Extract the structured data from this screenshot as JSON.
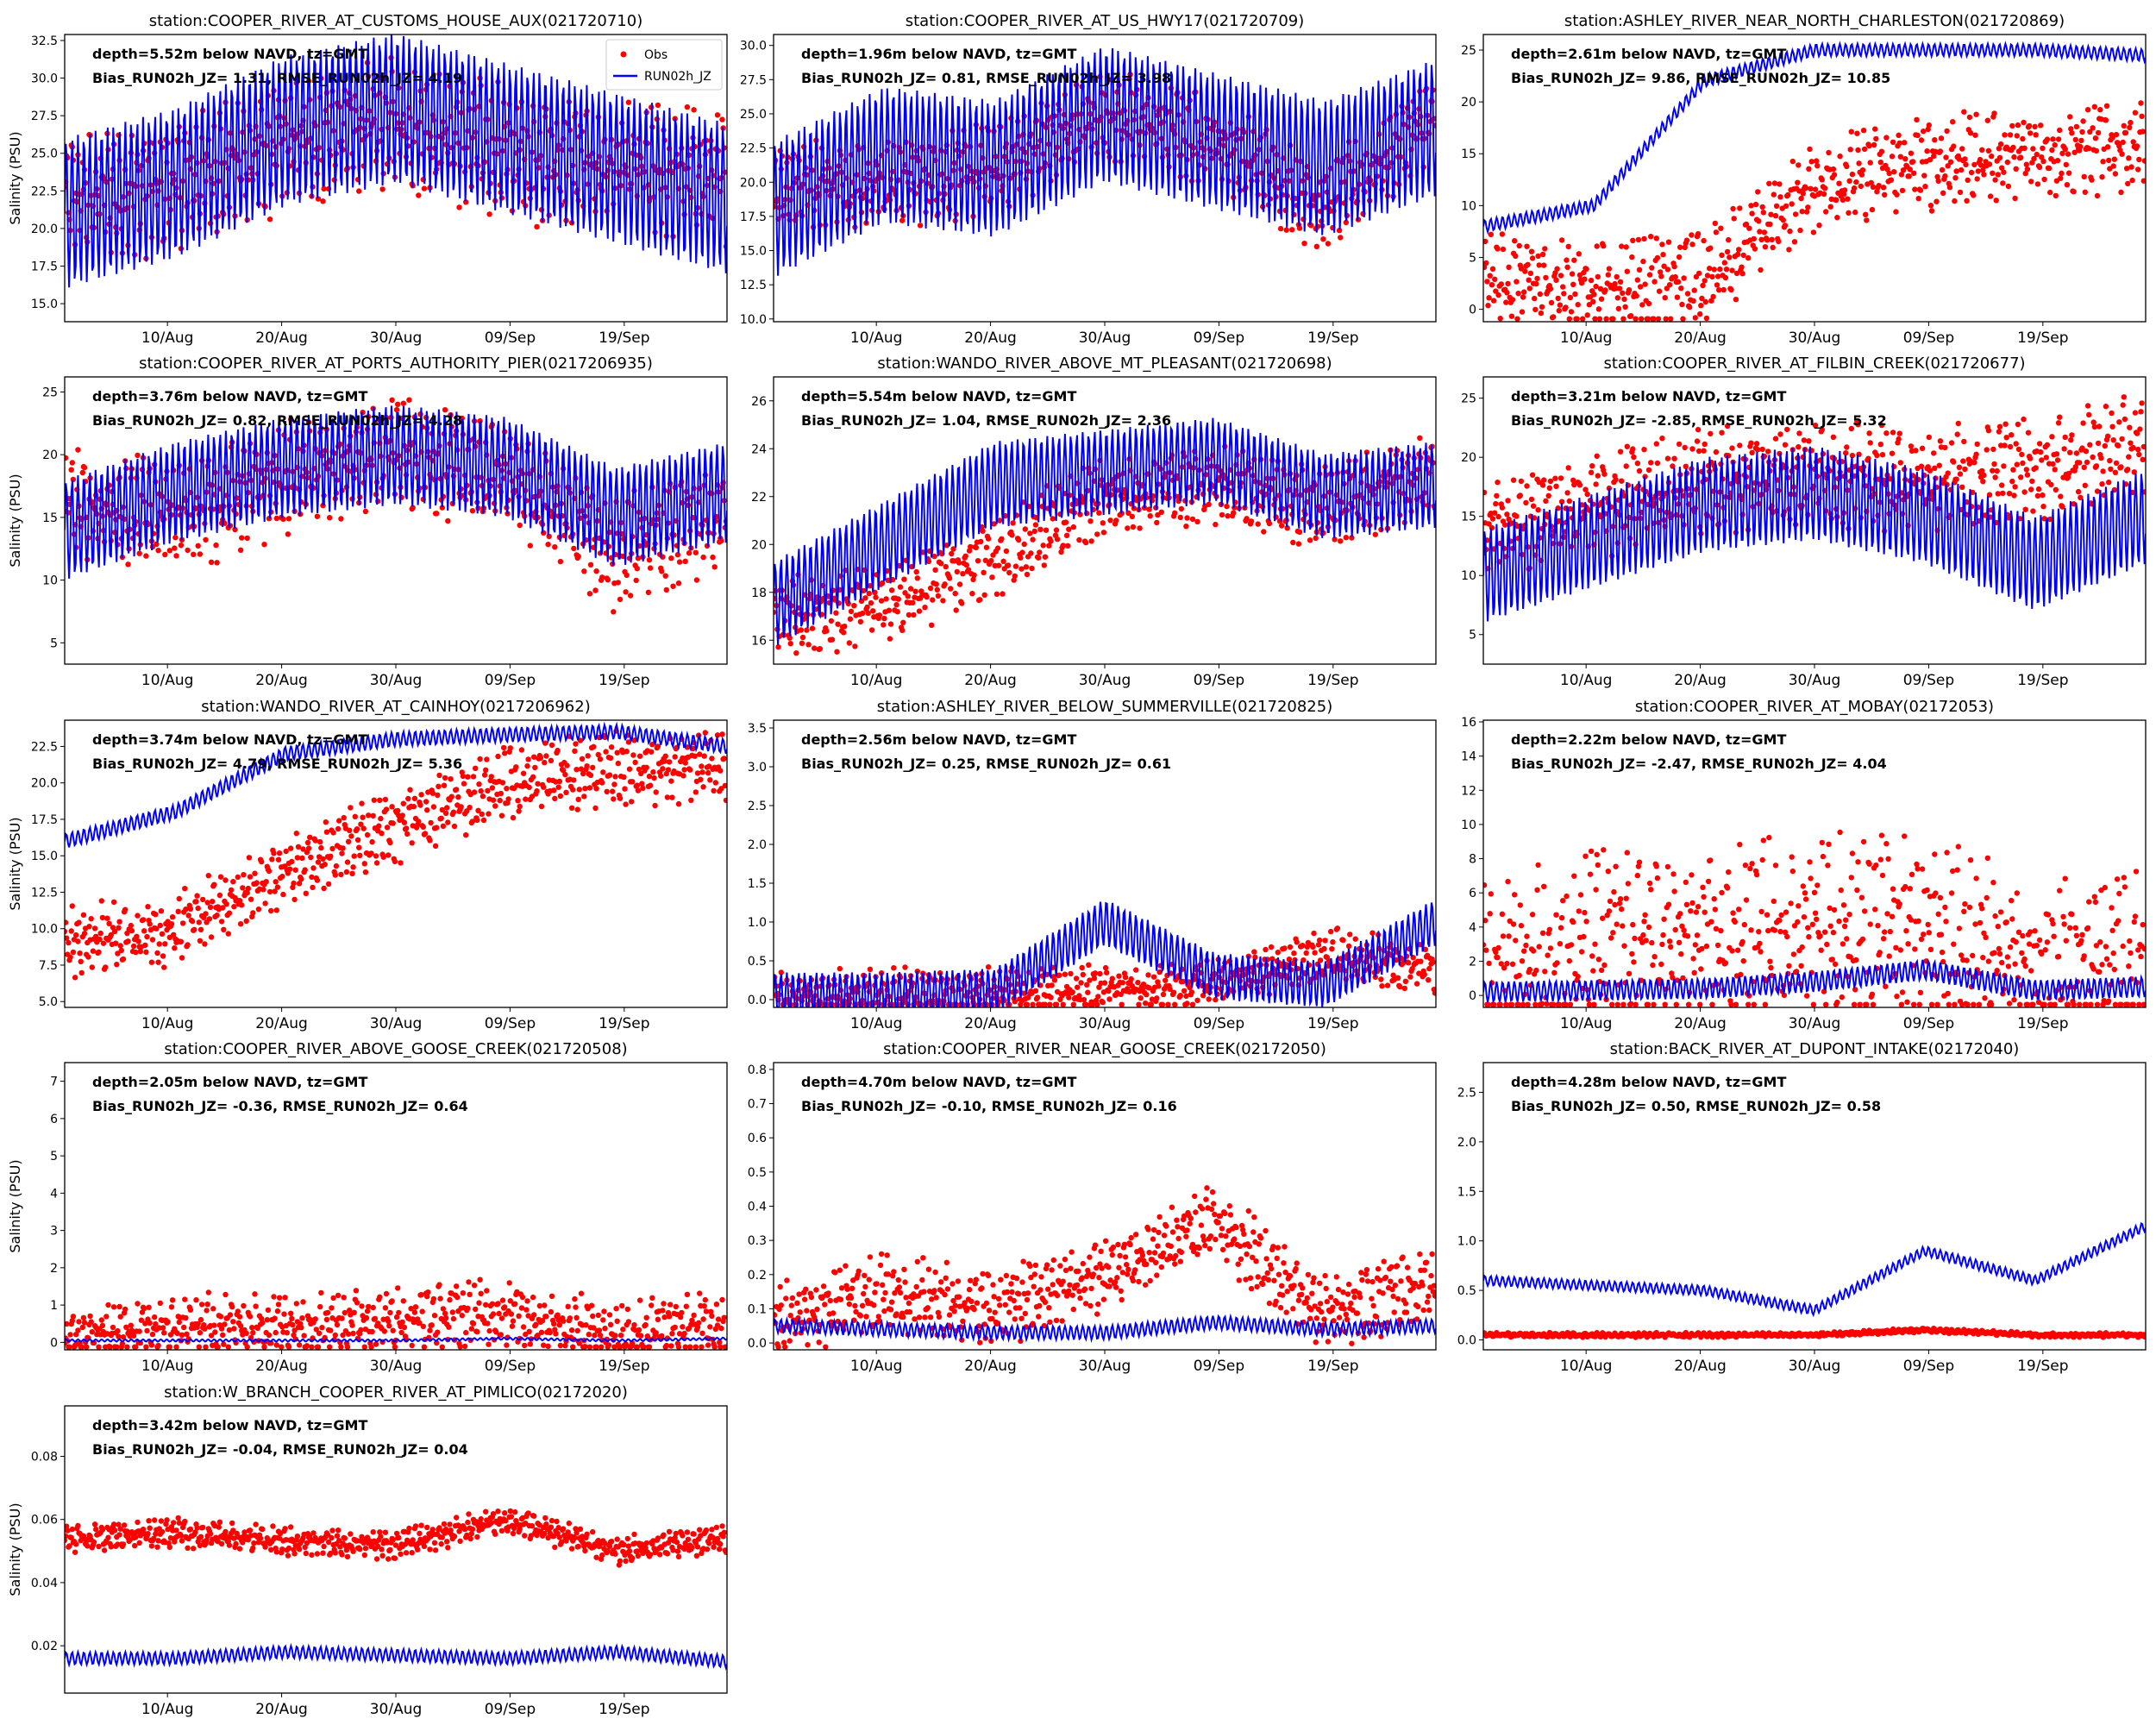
{
  "figure": {
    "legend": {
      "obs_label": "Obs",
      "model_label": "RUN02h_JZ",
      "placement": "upper-right of first panel"
    },
    "colors": {
      "obs": "#ff0000",
      "model": "#0000ff",
      "axes": "#000000"
    },
    "ylabel": "Salinity (PSU)",
    "x_range": [
      "01/Aug",
      "28/Sep"
    ],
    "x_ticks": [
      "10/Aug",
      "20/Aug",
      "30/Aug",
      "09/Sep",
      "19/Sep"
    ]
  },
  "chart_data": [
    {
      "type": "line",
      "title": "station:COOPER_RIVER_AT_CUSTOMS_HOUSE_AUX(021720710)",
      "annotation": [
        "depth=5.52m below NAVD, tz=GMT",
        "Bias_RUN02h_JZ=  1.31, RMSE_RUN02h_JZ=  4.19"
      ],
      "ylabel": "Salinity (PSU)",
      "ylim": [
        13.8,
        32.9
      ],
      "yticks": [
        "15.0",
        "17.5",
        "20.0",
        "22.5",
        "25.0",
        "27.5",
        "30.0",
        "32.5"
      ],
      "show_ylabel": true,
      "show_legend": true,
      "series": [
        {
          "name": "Obs",
          "style": "scatter",
          "base": [
            22,
            23,
            25.5,
            27,
            25,
            24,
            23.5
          ],
          "amp": 4,
          "tidal": true
        },
        {
          "name": "RUN02h_JZ",
          "style": "line",
          "base": [
            21,
            23,
            26.5,
            28,
            26,
            24,
            22
          ],
          "amp": 5,
          "tidal": true
        }
      ]
    },
    {
      "type": "line",
      "title": "station:COOPER_RIVER_AT_US_HWY17(021720709)",
      "annotation": [
        "depth=1.96m below NAVD, tz=GMT",
        "Bias_RUN02h_JZ=  0.81, RMSE_RUN02h_JZ=  3.98"
      ],
      "ylabel": "Salinity (PSU)",
      "ylim": [
        9.8,
        30.8
      ],
      "yticks": [
        "10.0",
        "12.5",
        "15.0",
        "17.5",
        "20.0",
        "22.5",
        "25.0",
        "27.5",
        "30.0"
      ],
      "show_ylabel": false,
      "show_legend": false,
      "series": [
        {
          "name": "Obs",
          "style": "scatter",
          "base": [
            20,
            20,
            21,
            25,
            23,
            18,
            25
          ],
          "amp": 3,
          "tidal": true
        },
        {
          "name": "RUN02h_JZ",
          "style": "line",
          "base": [
            18,
            22,
            21,
            25,
            23,
            21,
            24
          ],
          "amp": 5,
          "tidal": true
        }
      ]
    },
    {
      "type": "line",
      "title": "station:ASHLEY_RIVER_NEAR_NORTH_CHARLESTON(021720869)",
      "annotation": [
        "depth=2.61m below NAVD, tz=GMT",
        "Bias_RUN02h_JZ=  9.86, RMSE_RUN02h_JZ= 10.85"
      ],
      "ylabel": "Salinity (PSU)",
      "ylim": [
        -1.2,
        26.5
      ],
      "yticks": [
        "0",
        "5",
        "10",
        "15",
        "20",
        "25"
      ],
      "show_ylabel": false,
      "show_legend": false,
      "series": [
        {
          "name": "Obs",
          "style": "scatter",
          "base": [
            3,
            2,
            3,
            12,
            14,
            15,
            16
          ],
          "amp": 4,
          "tidal": true
        },
        {
          "name": "RUN02h_JZ",
          "style": "line",
          "base": [
            8,
            10,
            22,
            25,
            25,
            25,
            24.5
          ],
          "amp": 0.6,
          "tidal": true
        }
      ]
    },
    {
      "type": "line",
      "title": "station:COOPER_RIVER_AT_PORTS_AUTHORITY_PIER(0217206935)",
      "annotation": [
        "depth=3.76m below NAVD, tz=GMT",
        "Bias_RUN02h_JZ=  0.82, RMSE_RUN02h_JZ=  4.28"
      ],
      "ylabel": "Salinity (PSU)",
      "ylim": [
        3.3,
        26.2
      ],
      "yticks": [
        "5",
        "10",
        "15",
        "20",
        "25"
      ],
      "show_ylabel": true,
      "show_legend": false,
      "series": [
        {
          "name": "Obs",
          "style": "scatter",
          "base": [
            16,
            15,
            18,
            20,
            18,
            12,
            15
          ],
          "amp": 4,
          "tidal": true
        },
        {
          "name": "RUN02h_JZ",
          "style": "line",
          "base": [
            14,
            17,
            19,
            20,
            19,
            15,
            17
          ],
          "amp": 4,
          "tidal": true
        }
      ]
    },
    {
      "type": "line",
      "title": "station:WANDO_RIVER_ABOVE_MT_PLEASANT(021720698)",
      "annotation": [
        "depth=5.54m below NAVD, tz=GMT",
        "Bias_RUN02h_JZ=  1.04, RMSE_RUN02h_JZ=  2.36"
      ],
      "ylabel": "Salinity (PSU)",
      "ylim": [
        15.0,
        27.0
      ],
      "yticks": [
        "16",
        "18",
        "20",
        "22",
        "24",
        "26"
      ],
      "show_ylabel": false,
      "show_legend": false,
      "series": [
        {
          "name": "Obs",
          "style": "scatter",
          "base": [
            17,
            17.5,
            19.5,
            22,
            22.5,
            21.5,
            23
          ],
          "amp": 1.5,
          "tidal": true
        },
        {
          "name": "RUN02h_JZ",
          "style": "line",
          "base": [
            17.5,
            20,
            22.5,
            23,
            23.5,
            22,
            22.5
          ],
          "amp": 1.8,
          "tidal": true
        }
      ]
    },
    {
      "type": "line",
      "title": "station:COOPER_RIVER_AT_FILBIN_CREEK(021720677)",
      "annotation": [
        "depth=3.21m below NAVD, tz=GMT",
        "Bias_RUN02h_JZ= -2.85, RMSE_RUN02h_JZ=  5.32"
      ],
      "ylabel": "Salinity (PSU)",
      "ylim": [
        2.5,
        26.8
      ],
      "yticks": [
        "5",
        "10",
        "15",
        "20",
        "25"
      ],
      "show_ylabel": false,
      "show_legend": false,
      "series": [
        {
          "name": "Obs",
          "style": "scatter",
          "base": [
            14,
            16,
            18,
            19,
            18,
            19,
            21
          ],
          "amp": 4,
          "tidal": true
        },
        {
          "name": "RUN02h_JZ",
          "style": "line",
          "base": [
            10,
            13,
            16,
            17,
            15,
            11,
            15
          ],
          "amp": 4,
          "tidal": true
        }
      ]
    },
    {
      "type": "line",
      "title": "station:WANDO_RIVER_AT_CAINHOY(0217206962)",
      "annotation": [
        "depth=3.74m below NAVD, tz=GMT",
        "Bias_RUN02h_JZ=  4.79, RMSE_RUN02h_JZ=  5.36"
      ],
      "ylabel": "Salinity (PSU)",
      "ylim": [
        4.6,
        24.3
      ],
      "yticks": [
        "5.0",
        "7.5",
        "10.0",
        "12.5",
        "15.0",
        "17.5",
        "20.0",
        "22.5"
      ],
      "show_ylabel": true,
      "show_legend": false,
      "series": [
        {
          "name": "Obs",
          "style": "scatter",
          "base": [
            9,
            10,
            14,
            17,
            20,
            21,
            21
          ],
          "amp": 2.2,
          "tidal": true
        },
        {
          "name": "RUN02h_JZ",
          "style": "line",
          "base": [
            16,
            18,
            22,
            23,
            23.3,
            23.5,
            22.5
          ],
          "amp": 0.5,
          "tidal": true
        }
      ]
    },
    {
      "type": "line",
      "title": "station:ASHLEY_RIVER_BELOW_SUMMERVILLE(021720825)",
      "annotation": [
        "depth=2.56m below NAVD, tz=GMT",
        "Bias_RUN02h_JZ=  0.25, RMSE_RUN02h_JZ=  0.61"
      ],
      "ylabel": "Salinity (PSU)",
      "ylim": [
        -0.1,
        3.6
      ],
      "yticks": [
        "0.0",
        "0.5",
        "1.0",
        "1.5",
        "2.0",
        "2.5",
        "3.0",
        "3.5"
      ],
      "show_ylabel": false,
      "show_legend": false,
      "series": [
        {
          "name": "Obs",
          "style": "scatter",
          "base": [
            0.05,
            0.06,
            0.08,
            0.12,
            0.2,
            0.6,
            0.4
          ],
          "amp": 0.3,
          "tidal": true
        },
        {
          "name": "RUN02h_JZ",
          "style": "line",
          "base": [
            0.05,
            0.05,
            0.1,
            1.0,
            0.3,
            0.2,
            1.0
          ],
          "amp": 0.3,
          "tidal": true
        }
      ]
    },
    {
      "type": "line",
      "title": "station:COOPER_RIVER_AT_MOBAY(02172053)",
      "annotation": [
        "depth=2.22m below NAVD, tz=GMT",
        "Bias_RUN02h_JZ= -2.47, RMSE_RUN02h_JZ=  4.04"
      ],
      "ylabel": "Salinity (PSU)",
      "ylim": [
        -0.7,
        16.1
      ],
      "yticks": [
        "0",
        "2",
        "4",
        "6",
        "8",
        "10",
        "12",
        "14",
        "16"
      ],
      "show_ylabel": false,
      "show_legend": false,
      "series": [
        {
          "name": "Obs",
          "style": "scatter",
          "base": [
            1,
            3,
            3,
            4,
            4,
            1,
            3
          ],
          "amp": 5,
          "tidal": true
        },
        {
          "name": "RUN02h_JZ",
          "style": "line",
          "base": [
            0.2,
            0.3,
            0.4,
            0.8,
            1.5,
            0.3,
            0.5
          ],
          "amp": 0.6,
          "tidal": true
        }
      ]
    },
    {
      "type": "line",
      "title": "station:COOPER_RIVER_ABOVE_GOOSE_CREEK(021720508)",
      "annotation": [
        "depth=2.05m below NAVD, tz=GMT",
        "Bias_RUN02h_JZ= -0.36, RMSE_RUN02h_JZ=  0.64"
      ],
      "ylabel": "Salinity (PSU)",
      "ylim": [
        -0.2,
        7.5
      ],
      "yticks": [
        "0",
        "1",
        "2",
        "3",
        "4",
        "5",
        "6",
        "7"
      ],
      "show_ylabel": true,
      "show_legend": false,
      "series": [
        {
          "name": "Obs",
          "style": "scatter",
          "base": [
            0.1,
            0.4,
            0.5,
            0.6,
            0.8,
            0.2,
            0.5
          ],
          "amp": 0.8,
          "tidal": true
        },
        {
          "name": "RUN02h_JZ",
          "style": "line",
          "base": [
            0.05,
            0.05,
            0.05,
            0.05,
            0.1,
            0.05,
            0.1
          ],
          "amp": 0.03,
          "tidal": true
        }
      ]
    },
    {
      "type": "line",
      "title": "station:COOPER_RIVER_NEAR_GOOSE_CREEK(02172050)",
      "annotation": [
        "depth=4.70m below NAVD, tz=GMT",
        "Bias_RUN02h_JZ= -0.10, RMSE_RUN02h_JZ=  0.16"
      ],
      "ylabel": "Salinity (PSU)",
      "ylim": [
        -0.02,
        0.82
      ],
      "yticks": [
        "0.0",
        "0.1",
        "0.2",
        "0.3",
        "0.4",
        "0.5",
        "0.6",
        "0.7",
        "0.8"
      ],
      "show_ylabel": false,
      "show_legend": false,
      "series": [
        {
          "name": "Obs",
          "style": "scatter",
          "base": [
            0.06,
            0.15,
            0.1,
            0.2,
            0.35,
            0.08,
            0.18
          ],
          "amp": 0.1,
          "tidal": true
        },
        {
          "name": "RUN02h_JZ",
          "style": "line",
          "base": [
            0.05,
            0.04,
            0.03,
            0.03,
            0.06,
            0.04,
            0.05
          ],
          "amp": 0.02,
          "tidal": true
        }
      ]
    },
    {
      "type": "line",
      "title": "station:BACK_RIVER_AT_DUPONT_INTAKE(02172040)",
      "annotation": [
        "depth=4.28m below NAVD, tz=GMT",
        "Bias_RUN02h_JZ=  0.50, RMSE_RUN02h_JZ=  0.58"
      ],
      "ylabel": "Salinity (PSU)",
      "ylim": [
        -0.1,
        2.8
      ],
      "yticks": [
        "0.0",
        "0.5",
        "1.0",
        "1.5",
        "2.0",
        "2.5"
      ],
      "show_ylabel": false,
      "show_legend": false,
      "series": [
        {
          "name": "Obs",
          "style": "scatter",
          "base": [
            0.05,
            0.05,
            0.05,
            0.05,
            0.1,
            0.05,
            0.05
          ],
          "amp": 0.02,
          "tidal": true
        },
        {
          "name": "RUN02h_JZ",
          "style": "line",
          "base": [
            0.6,
            0.55,
            0.5,
            0.3,
            0.9,
            0.6,
            1.15
          ],
          "amp": 0.05,
          "tidal": true
        }
      ]
    },
    {
      "type": "line",
      "title": "station:W_BRANCH_COOPER_RIVER_AT_PIMLICO(02172020)",
      "annotation": [
        "depth=3.42m below NAVD, tz=GMT",
        "Bias_RUN02h_JZ= -0.04, RMSE_RUN02h_JZ=  0.04"
      ],
      "ylabel": "Salinity (PSU)",
      "ylim": [
        0.005,
        0.096
      ],
      "yticks": [
        "0.02",
        "0.04",
        "0.06",
        "0.08"
      ],
      "show_ylabel": true,
      "show_legend": false,
      "series": [
        {
          "name": "Obs",
          "style": "scatter",
          "base": [
            0.054,
            0.056,
            0.053,
            0.052,
            0.06,
            0.05,
            0.054
          ],
          "amp": 0.004,
          "tidal": true
        },
        {
          "name": "RUN02h_JZ",
          "style": "line",
          "base": [
            0.016,
            0.016,
            0.018,
            0.017,
            0.016,
            0.018,
            0.015
          ],
          "amp": 0.002,
          "tidal": true
        }
      ]
    }
  ]
}
